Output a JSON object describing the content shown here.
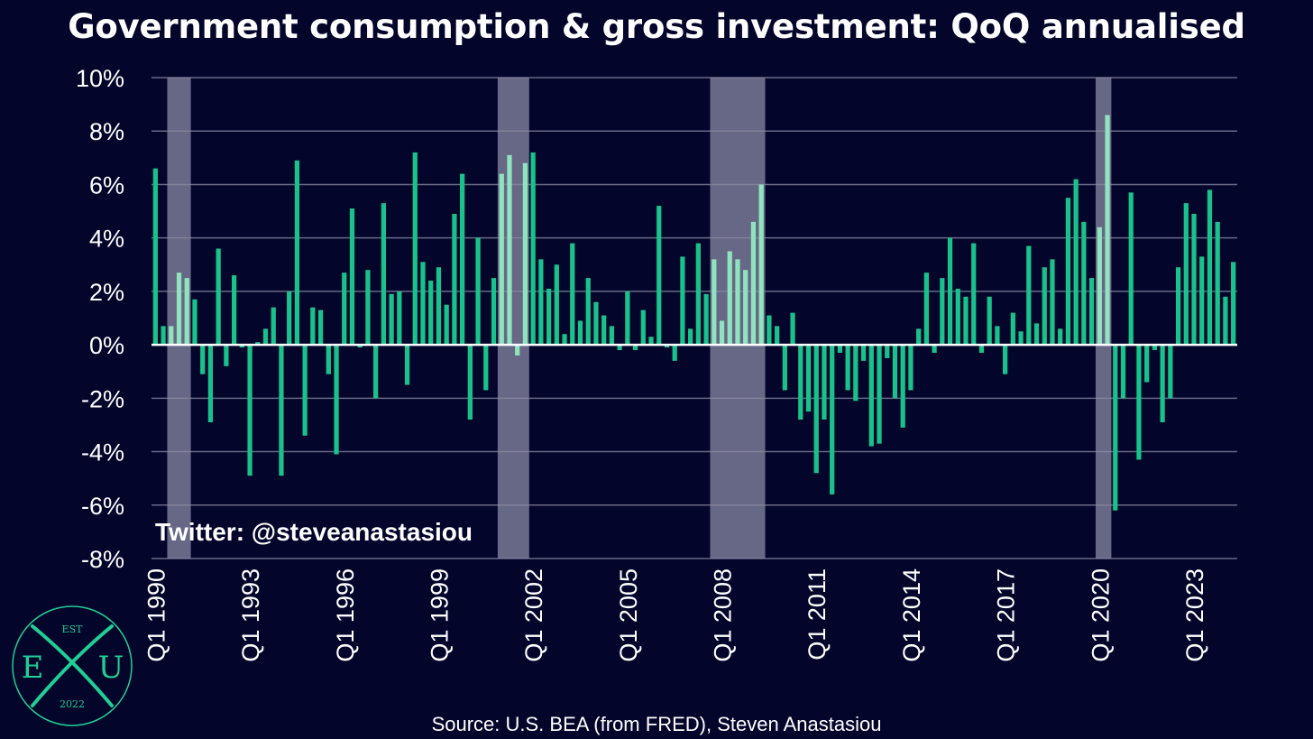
{
  "chart_data": {
    "type": "bar",
    "title": "Government consumption & gross investment: QoQ annualised",
    "source": "Source: U.S. BEA (from FRED), Steven Anastasiou",
    "watermark": "Twitter: @steveanastasiou",
    "ylim": [
      -8,
      10
    ],
    "yticks": [
      10,
      8,
      6,
      4,
      2,
      0,
      -2,
      -4,
      -6,
      -8
    ],
    "ytick_labels": [
      "10%",
      "8%",
      "6%",
      "4%",
      "2%",
      "0%",
      "-2%",
      "-4%",
      "-6%",
      "-8%"
    ],
    "xtick_labels": [
      "Q1 1990",
      "Q1 1993",
      "Q1 1996",
      "Q1 1999",
      "Q1 2002",
      "Q1 2005",
      "Q1 2008",
      "Q1 2011",
      "Q1 2014",
      "Q1 2017",
      "Q1 2020",
      "Q1 2023"
    ],
    "start": "Q1 1990",
    "end": "Q2 2024",
    "recessions": [
      [
        "Q3 1990",
        "Q1 1991"
      ],
      [
        "Q1 2001",
        "Q4 2001"
      ],
      [
        "Q4 2007",
        "Q2 2009"
      ],
      [
        "Q1 2020",
        "Q2 2020"
      ]
    ],
    "values": [
      6.6,
      0.7,
      0.7,
      2.7,
      2.5,
      1.7,
      -1.1,
      -2.9,
      3.6,
      -0.8,
      2.6,
      -0.1,
      -4.9,
      0.1,
      0.6,
      1.4,
      -4.9,
      2.0,
      6.9,
      -3.4,
      1.4,
      1.3,
      -1.1,
      -4.1,
      2.7,
      5.1,
      -0.1,
      2.8,
      -2.0,
      5.3,
      1.9,
      2.0,
      -1.5,
      7.2,
      3.1,
      2.4,
      2.9,
      1.5,
      4.9,
      6.4,
      -2.8,
      4.0,
      -1.7,
      2.5,
      6.4,
      7.1,
      -0.4,
      6.8,
      7.2,
      3.2,
      2.1,
      3.0,
      0.4,
      3.8,
      0.9,
      2.5,
      1.6,
      1.1,
      0.7,
      -0.2,
      2.0,
      -0.2,
      1.3,
      0.3,
      5.2,
      -0.1,
      -0.6,
      3.3,
      0.6,
      3.8,
      1.9,
      3.2,
      0.9,
      3.5,
      3.2,
      2.8,
      4.6,
      6.0,
      1.1,
      0.7,
      -1.7,
      1.2,
      -2.8,
      -2.5,
      -4.8,
      -2.8,
      -5.6,
      -0.3,
      -1.7,
      -2.1,
      -0.6,
      -3.8,
      -3.7,
      -0.5,
      -2.0,
      -3.1,
      -1.7,
      0.6,
      2.7,
      -0.3,
      2.5,
      4.0,
      2.1,
      1.8,
      3.8,
      -0.3,
      1.8,
      0.7,
      -1.1,
      1.2,
      0.5,
      3.7,
      0.8,
      2.9,
      3.2,
      0.6,
      5.5,
      6.2,
      4.6,
      2.5,
      4.4,
      8.6,
      -6.2,
      -2.0,
      5.7,
      -4.3,
      -1.4,
      -0.2,
      -2.9,
      -2.0,
      2.9,
      5.3,
      4.9,
      3.3,
      5.8,
      4.6,
      1.8,
      3.1
    ]
  },
  "colors": {
    "background": "#03052b",
    "bar": "#19c28a",
    "bar_in_recession": "#8fe3bd",
    "recession_band": "#676786",
    "grid": "#8a8aa3",
    "zero_line": "#ffffff",
    "text": "#ffffff",
    "logo": "#1fcf95"
  },
  "logo": {
    "top_text": "EST",
    "left_letter": "E",
    "right_letter": "U",
    "bottom_text": "2022"
  }
}
